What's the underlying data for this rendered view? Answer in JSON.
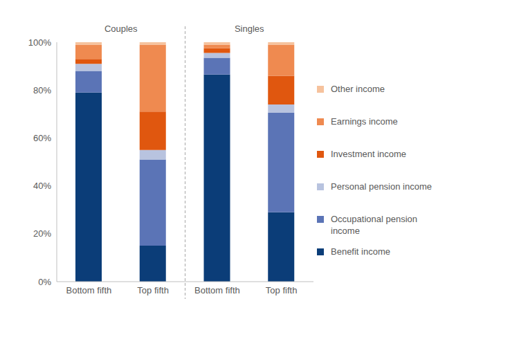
{
  "chart_data": {
    "type": "bar",
    "stacked": true,
    "grid": false,
    "category_groups": [
      "Couples",
      "Singles"
    ],
    "categories": [
      "Bottom fifth",
      "Top fifth",
      "Bottom fifth",
      "Top fifth"
    ],
    "ylim": [
      0,
      100
    ],
    "yticks": [
      {
        "value": 0,
        "label": "0%"
      },
      {
        "value": 20,
        "label": "20%"
      },
      {
        "value": 40,
        "label": "40%"
      },
      {
        "value": 60,
        "label": "60%"
      },
      {
        "value": 80,
        "label": "80%"
      },
      {
        "value": 100,
        "label": "100%"
      }
    ],
    "legend": "right",
    "series": [
      {
        "name": "Benefit income",
        "color": "#0b3d78",
        "values": [
          79,
          15,
          86.5,
          29
        ]
      },
      {
        "name": "Occupational pension income",
        "color": "#5b74b6",
        "values": [
          9,
          36,
          7,
          41.5
        ]
      },
      {
        "name": "Personal pension income",
        "color": "#b8c3df",
        "values": [
          3,
          4,
          2,
          3.5
        ]
      },
      {
        "name": "Investment income",
        "color": "#e0570f",
        "values": [
          2,
          16,
          2,
          12
        ]
      },
      {
        "name": "Earnings income",
        "color": "#ef8a50",
        "values": [
          6,
          28,
          1.5,
          13
        ]
      },
      {
        "name": "Other income",
        "color": "#f6c29d",
        "values": [
          1,
          1,
          1,
          1
        ]
      }
    ]
  }
}
